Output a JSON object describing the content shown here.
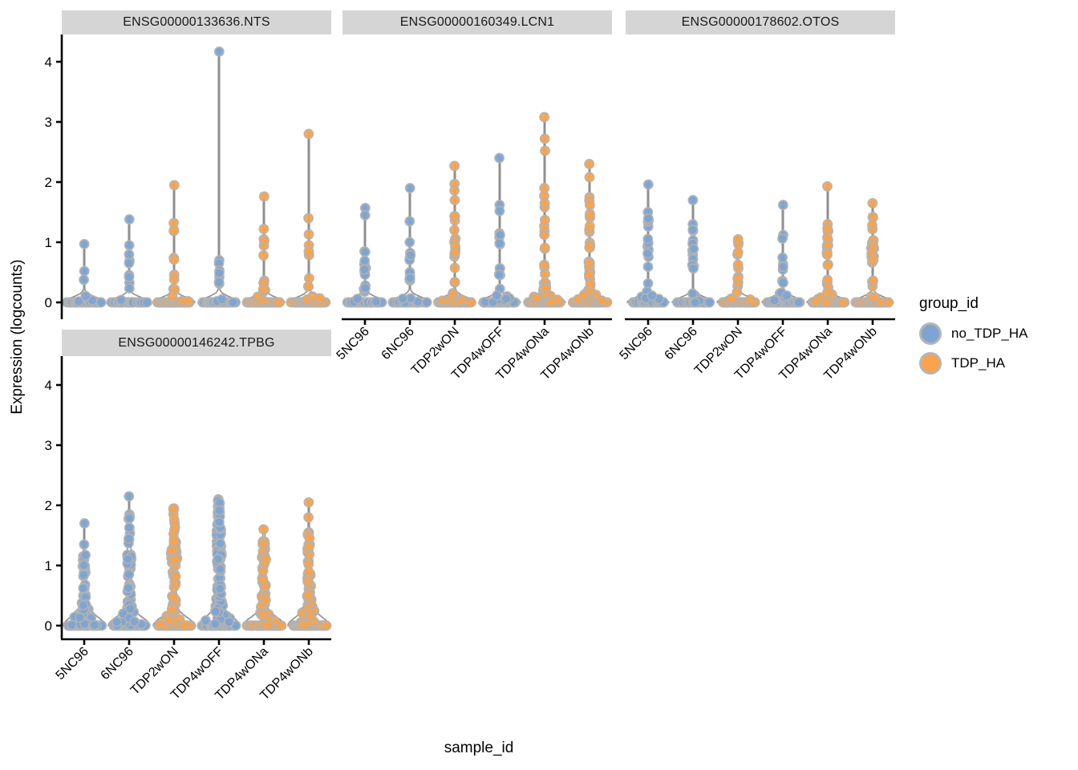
{
  "styles": {
    "strip_bg": "#d5d5d5",
    "axis_color": "#000000",
    "violin_stroke": "#8f8f8f",
    "violin_fill": "#fafafa",
    "point_stroke": "#b3b3b3",
    "text_color": "#000000"
  },
  "chart_data": {
    "type": "violin",
    "title": "",
    "xlabel": "sample_id",
    "ylabel": "Expression (logcounts)",
    "y_ticks": [
      0,
      1,
      2,
      3,
      4
    ],
    "ylim": [
      -0.28,
      4.45
    ],
    "grid": false,
    "legend_position": "right",
    "categories": [
      "5NC96",
      "6NC96",
      "TDP2wON",
      "TDP4wOFF",
      "TDP4wONa",
      "TDP4wONb"
    ],
    "legend": {
      "title": "group_id",
      "items": [
        {
          "label": "no_TDP_HA",
          "color": "#7DA4D2"
        },
        {
          "label": "TDP_HA",
          "color": "#F9A34C"
        }
      ]
    },
    "facets": [
      {
        "label": "ENSG00000133636.NTS",
        "body_skew": 1.8,
        "violins": [
          {
            "category": "5NC96",
            "group": "no_TDP_HA",
            "high_points": [
              0.97
            ],
            "body_max": 0.52,
            "body_n": 5,
            "zero_n": 40
          },
          {
            "category": "6NC96",
            "group": "no_TDP_HA",
            "high_points": [
              1.38
            ],
            "body_max": 0.95,
            "body_n": 9,
            "zero_n": 40
          },
          {
            "category": "TDP2wON",
            "group": "TDP_HA",
            "high_points": [
              1.95,
              1.32
            ],
            "body_max": 1.2,
            "body_n": 11,
            "zero_n": 45
          },
          {
            "category": "TDP4wOFF",
            "group": "no_TDP_HA",
            "high_points": [
              4.17
            ],
            "body_max": 0.7,
            "body_n": 9,
            "zero_n": 45
          },
          {
            "category": "TDP4wONa",
            "group": "TDP_HA",
            "high_points": [
              1.76,
              1.22
            ],
            "body_max": 1.05,
            "body_n": 12,
            "zero_n": 45
          },
          {
            "category": "TDP4wONb",
            "group": "TDP_HA",
            "high_points": [
              2.8,
              1.4,
              1.13
            ],
            "body_max": 0.95,
            "body_n": 11,
            "zero_n": 48
          }
        ]
      },
      {
        "label": "ENSG00000160349.LCN1",
        "body_skew": 1.6,
        "violins": [
          {
            "category": "5NC96",
            "group": "no_TDP_HA",
            "high_points": [
              1.57,
              1.45
            ],
            "body_max": 0.85,
            "body_n": 16,
            "zero_n": 38
          },
          {
            "category": "6NC96",
            "group": "no_TDP_HA",
            "high_points": [
              1.9,
              1.35
            ],
            "body_max": 1.0,
            "body_n": 14,
            "zero_n": 38
          },
          {
            "category": "TDP2wON",
            "group": "TDP_HA",
            "high_points": [
              2.27,
              1.97,
              1.86
            ],
            "body_max": 1.7,
            "body_n": 28,
            "zero_n": 40
          },
          {
            "category": "TDP4wOFF",
            "group": "no_TDP_HA",
            "high_points": [
              2.4,
              1.62,
              1.52
            ],
            "body_max": 1.15,
            "body_n": 20,
            "zero_n": 38
          },
          {
            "category": "TDP4wONa",
            "group": "TDP_HA",
            "high_points": [
              3.08,
              2.72,
              2.52
            ],
            "body_max": 1.9,
            "body_n": 32,
            "zero_n": 40
          },
          {
            "category": "TDP4wONb",
            "group": "TDP_HA",
            "high_points": [
              2.3,
              2.08
            ],
            "body_max": 1.75,
            "body_n": 38,
            "zero_n": 40
          }
        ]
      },
      {
        "label": "ENSG00000178602.OTOS",
        "body_skew": 1.5,
        "violins": [
          {
            "category": "5NC96",
            "group": "no_TDP_HA",
            "high_points": [
              1.96
            ],
            "body_max": 1.5,
            "body_n": 18,
            "zero_n": 38
          },
          {
            "category": "6NC96",
            "group": "no_TDP_HA",
            "high_points": [
              1.7
            ],
            "body_max": 1.3,
            "body_n": 18,
            "zero_n": 38
          },
          {
            "category": "TDP2wON",
            "group": "TDP_HA",
            "high_points": [
              1.05
            ],
            "body_max": 1.0,
            "body_n": 14,
            "zero_n": 42
          },
          {
            "category": "TDP4wOFF",
            "group": "no_TDP_HA",
            "high_points": [
              1.62
            ],
            "body_max": 1.12,
            "body_n": 14,
            "zero_n": 40
          },
          {
            "category": "TDP4wONa",
            "group": "TDP_HA",
            "high_points": [
              1.93
            ],
            "body_max": 1.3,
            "body_n": 26,
            "zero_n": 42
          },
          {
            "category": "TDP4wONb",
            "group": "TDP_HA",
            "high_points": [
              1.65
            ],
            "body_max": 1.42,
            "body_n": 26,
            "zero_n": 42
          }
        ]
      },
      {
        "label": "ENSG00000146242.TPBG",
        "body_skew": 1.25,
        "violins": [
          {
            "category": "5NC96",
            "group": "no_TDP_HA",
            "high_points": [
              1.7
            ],
            "body_max": 1.35,
            "body_n": 60,
            "zero_n": 36
          },
          {
            "category": "6NC96",
            "group": "no_TDP_HA",
            "high_points": [
              2.15
            ],
            "body_max": 1.85,
            "body_n": 60,
            "zero_n": 36
          },
          {
            "category": "TDP2wON",
            "group": "TDP_HA",
            "high_points": [],
            "body_max": 1.95,
            "body_n": 70,
            "zero_n": 38
          },
          {
            "category": "TDP4wOFF",
            "group": "no_TDP_HA",
            "high_points": [],
            "body_max": 2.1,
            "body_n": 95,
            "zero_n": 38
          },
          {
            "category": "TDP4wONa",
            "group": "TDP_HA",
            "high_points": [
              1.6
            ],
            "body_max": 1.4,
            "body_n": 55,
            "zero_n": 38
          },
          {
            "category": "TDP4wONb",
            "group": "TDP_HA",
            "high_points": [
              2.05,
              1.8
            ],
            "body_max": 1.55,
            "body_n": 60,
            "zero_n": 38
          }
        ]
      }
    ]
  }
}
